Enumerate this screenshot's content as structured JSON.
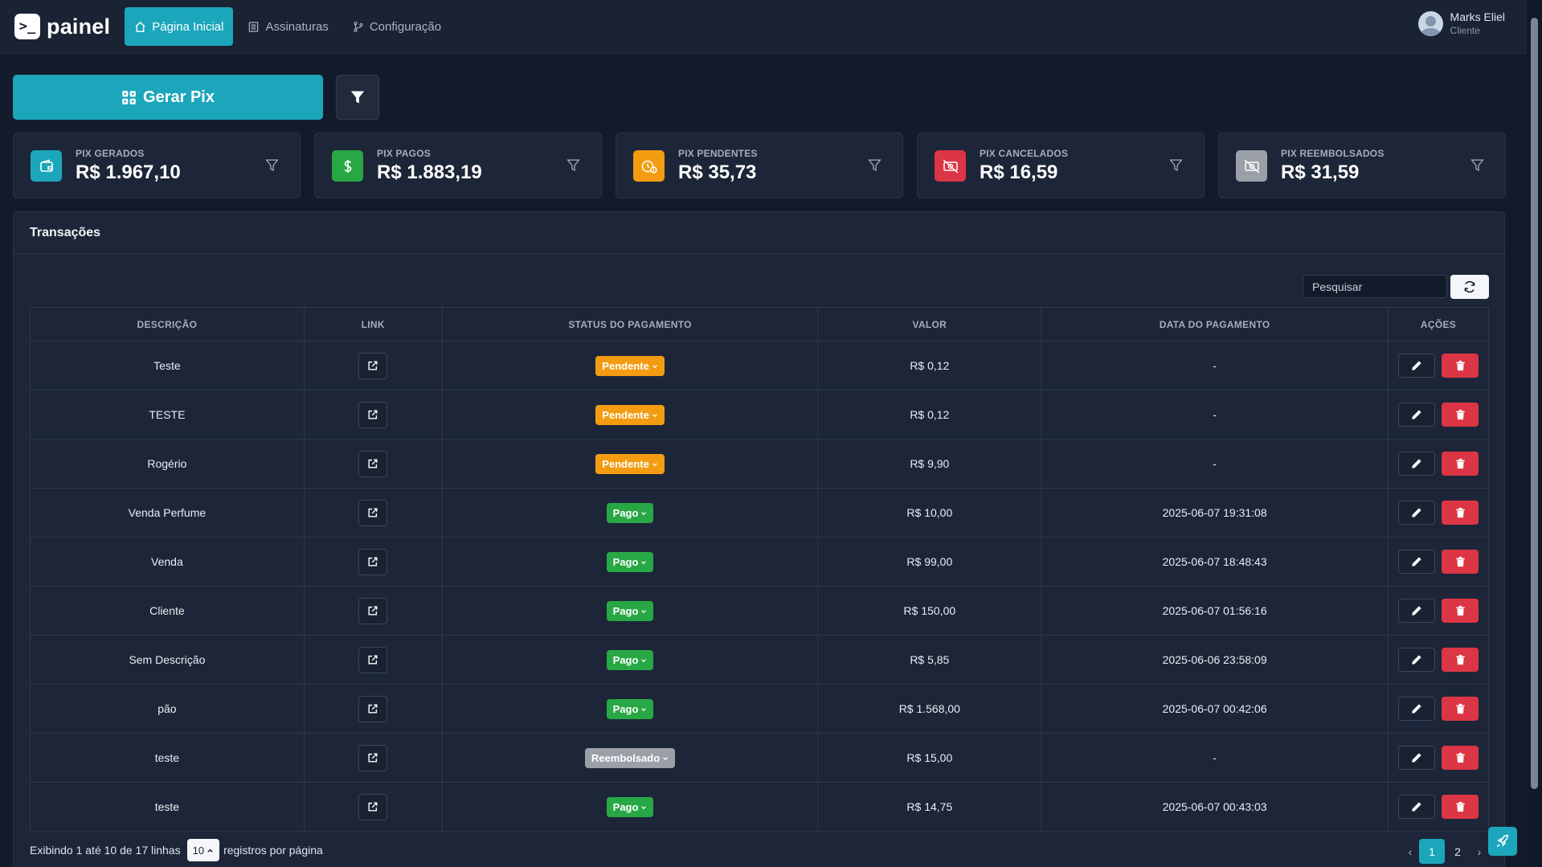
{
  "brand": {
    "logo": ">_",
    "name": "painel"
  },
  "nav": [
    {
      "label": "Página Inicial",
      "icon": "home-icon",
      "active": true
    },
    {
      "label": "Assinaturas",
      "icon": "list-icon",
      "active": false
    },
    {
      "label": "Configuração",
      "icon": "branch-icon",
      "active": false
    }
  ],
  "user": {
    "name": "Marks Eliel",
    "role": "Cliente"
  },
  "actions": {
    "gerar_label": "Gerar Pix"
  },
  "stats": [
    {
      "label": "PIX GERADOS",
      "value": "R$ 1.967,10",
      "color": "#1ca6bc",
      "icon": "wallet-icon"
    },
    {
      "label": "PIX PAGOS",
      "value": "R$ 1.883,19",
      "color": "#28a745",
      "icon": "dollar-icon"
    },
    {
      "label": "PIX PENDENTES",
      "value": "R$ 35,73",
      "color": "#f39c12",
      "icon": "clock-money-icon"
    },
    {
      "label": "PIX CANCELADOS",
      "value": "R$ 16,59",
      "color": "#dc3545",
      "icon": "cancelled-money-icon"
    },
    {
      "label": "PIX REEMBOLSADOS",
      "value": "R$ 31,59",
      "color": "#9a9fa8",
      "icon": "refund-money-icon"
    }
  ],
  "transactions": {
    "title": "Transações",
    "search_placeholder": "Pesquisar",
    "columns": [
      "DESCRIÇÃO",
      "LINK",
      "STATUS DO PAGAMENTO",
      "VALOR",
      "DATA DO PAGAMENTO",
      "AÇÕES"
    ],
    "rows": [
      {
        "descricao": "Teste",
        "status": "Pendente",
        "valor": "R$ 0,12",
        "data": "-"
      },
      {
        "descricao": "TESTE",
        "status": "Pendente",
        "valor": "R$ 0,12",
        "data": "-"
      },
      {
        "descricao": "Rogério",
        "status": "Pendente",
        "valor": "R$ 9,90",
        "data": "-"
      },
      {
        "descricao": "Venda Perfume",
        "status": "Pago",
        "valor": "R$ 10,00",
        "data": "2025-06-07 19:31:08"
      },
      {
        "descricao": "Venda",
        "status": "Pago",
        "valor": "R$ 99,00",
        "data": "2025-06-07 18:48:43"
      },
      {
        "descricao": "Cliente",
        "status": "Pago",
        "valor": "R$ 150,00",
        "data": "2025-06-07 01:56:16"
      },
      {
        "descricao": "Sem Descrição",
        "status": "Pago",
        "valor": "R$ 5,85",
        "data": "2025-06-06 23:58:09"
      },
      {
        "descricao": "pão",
        "status": "Pago",
        "valor": "R$ 1.568,00",
        "data": "2025-06-07 00:42:06"
      },
      {
        "descricao": "teste",
        "status": "Reembolsado",
        "valor": "R$ 15,00",
        "data": "-"
      },
      {
        "descricao": "teste",
        "status": "Pago",
        "valor": "R$ 14,75",
        "data": "2025-06-07 00:43:03"
      }
    ],
    "footer": {
      "info": "Exibindo 1 até 10 de 17 linhas",
      "page_size": "10",
      "per_page_suffix": "registros por página"
    },
    "pagination": {
      "prev": "‹",
      "pages": [
        "1",
        "2"
      ],
      "current": "1",
      "next": "›"
    }
  }
}
